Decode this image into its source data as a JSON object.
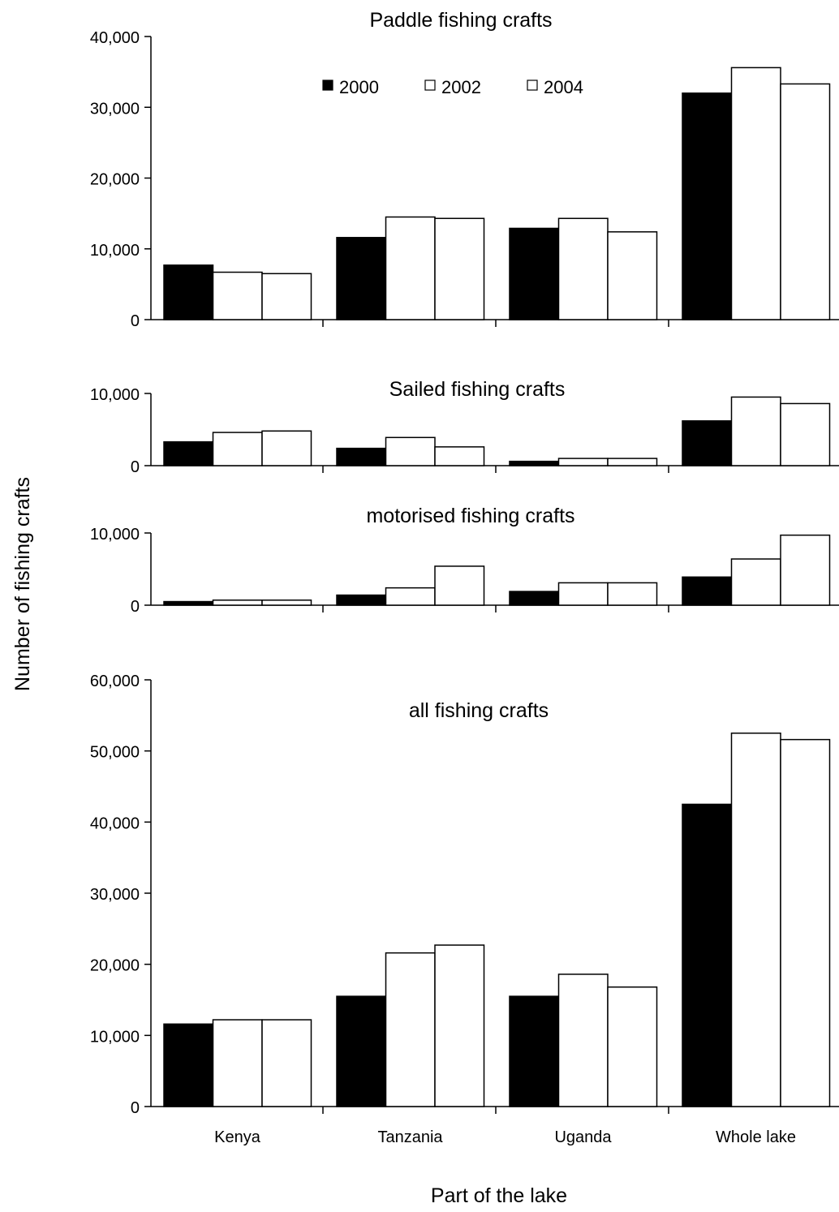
{
  "chart_data": {
    "type": "bar",
    "ylabel": "Number of fishing crafts",
    "xlabel": "Part of the lake",
    "categories": [
      "Kenya",
      "Tanzania",
      "Uganda",
      "Whole lake"
    ],
    "legend": {
      "placement": "top-center of first panel",
      "entries": [
        {
          "name": "2000",
          "fill": "#000000"
        },
        {
          "name": "2002",
          "fill": "#ffffff"
        },
        {
          "name": "2004",
          "fill": "#ffffff"
        }
      ]
    },
    "colors": {
      "series_2000": "#000000",
      "series_2002": "#ffffff",
      "series_2004": "#ffffff",
      "stroke": "#000000"
    },
    "grid": false,
    "panels": [
      {
        "title": "Paddle fishing crafts",
        "ylim": [
          0,
          40000
        ],
        "yticks": [
          0,
          10000,
          20000,
          30000,
          40000
        ],
        "ytick_labels": [
          "0",
          "10,000",
          "20,000",
          "30,000",
          "40,000"
        ],
        "series": [
          {
            "name": "2000",
            "values": [
              7700,
              11600,
              12900,
              32000
            ]
          },
          {
            "name": "2002",
            "values": [
              6700,
              14500,
              14300,
              35600
            ]
          },
          {
            "name": "2004",
            "values": [
              6500,
              14300,
              12400,
              33300
            ]
          }
        ]
      },
      {
        "title": "Sailed fishing crafts",
        "ylim": [
          0,
          10000
        ],
        "yticks": [
          0,
          10000
        ],
        "ytick_labels": [
          "0",
          "10,000"
        ],
        "series": [
          {
            "name": "2000",
            "values": [
              3300,
              2400,
              600,
              6200
            ]
          },
          {
            "name": "2002",
            "values": [
              4600,
              3900,
              1000,
              9500
            ]
          },
          {
            "name": "2004",
            "values": [
              4800,
              2600,
              1000,
              8600
            ]
          }
        ]
      },
      {
        "title": "motorised fishing crafts",
        "ylim": [
          0,
          10000
        ],
        "yticks": [
          0,
          10000
        ],
        "ytick_labels": [
          "0",
          "10,000"
        ],
        "series": [
          {
            "name": "2000",
            "values": [
              500,
              1400,
              1900,
              3900
            ]
          },
          {
            "name": "2002",
            "values": [
              700,
              2400,
              3100,
              6400
            ]
          },
          {
            "name": "2004",
            "values": [
              700,
              5400,
              3100,
              9700
            ]
          }
        ]
      },
      {
        "title": "all fishing crafts",
        "ylim": [
          0,
          60000
        ],
        "yticks": [
          0,
          10000,
          20000,
          30000,
          40000,
          50000,
          60000
        ],
        "ytick_labels": [
          "0",
          "10,000",
          "20,000",
          "30,000",
          "40,000",
          "50,000",
          "60,000"
        ],
        "series": [
          {
            "name": "2000",
            "values": [
              11600,
              15500,
              15500,
              42500
            ]
          },
          {
            "name": "2002",
            "values": [
              12200,
              21600,
              18600,
              52500
            ]
          },
          {
            "name": "2004",
            "values": [
              12200,
              22700,
              16800,
              51600
            ]
          }
        ]
      }
    ]
  }
}
